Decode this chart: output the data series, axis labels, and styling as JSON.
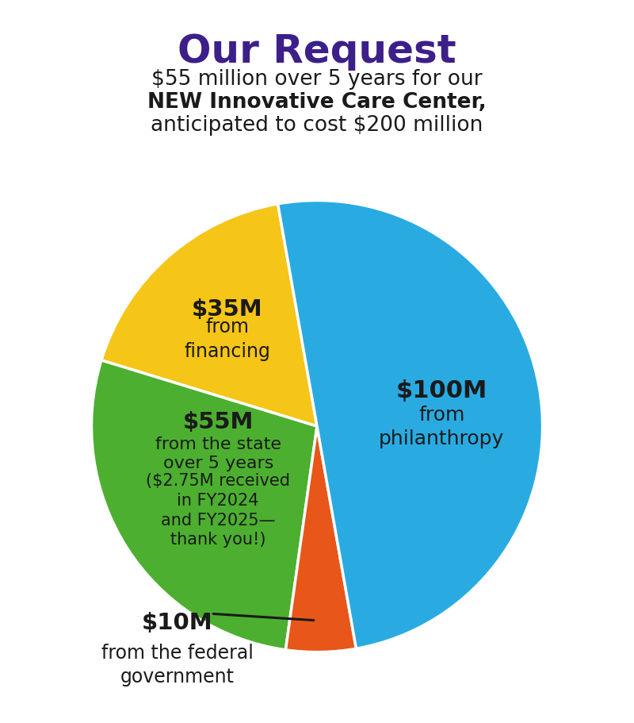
{
  "title": "Our Request",
  "subtitle_line1": "$55 million over 5 years for our",
  "subtitle_line2_bold": "NEW Innovative Care Center,",
  "subtitle_line3": "anticipated to cost $200 million",
  "title_color": "#3d1f8a",
  "subtitle_color": "#1a1a1a",
  "background_color": "#ffffff",
  "slices": [
    {
      "value": 100,
      "color": "#29abe2",
      "label_main": "$100M",
      "label_sub": "from\nphilanthropy"
    },
    {
      "value": 35,
      "color": "#f5c518",
      "label_main": "$35M",
      "label_sub": "from\nfinancing"
    },
    {
      "value": 55,
      "color": "#4caf30",
      "label_main": "$55M",
      "label_sub": "from the state\nover 5 years\n\n($2.75M received\nin FY2024\nand FY2025—\nthank you!)"
    },
    {
      "value": 10,
      "color": "#e8561a",
      "label_main": "$10M",
      "label_sub": "from the federal\ngovernment"
    }
  ],
  "text_color_dark": "#1a1a1a",
  "figsize": [
    8.0,
    9.12
  ],
  "dpi": 100
}
